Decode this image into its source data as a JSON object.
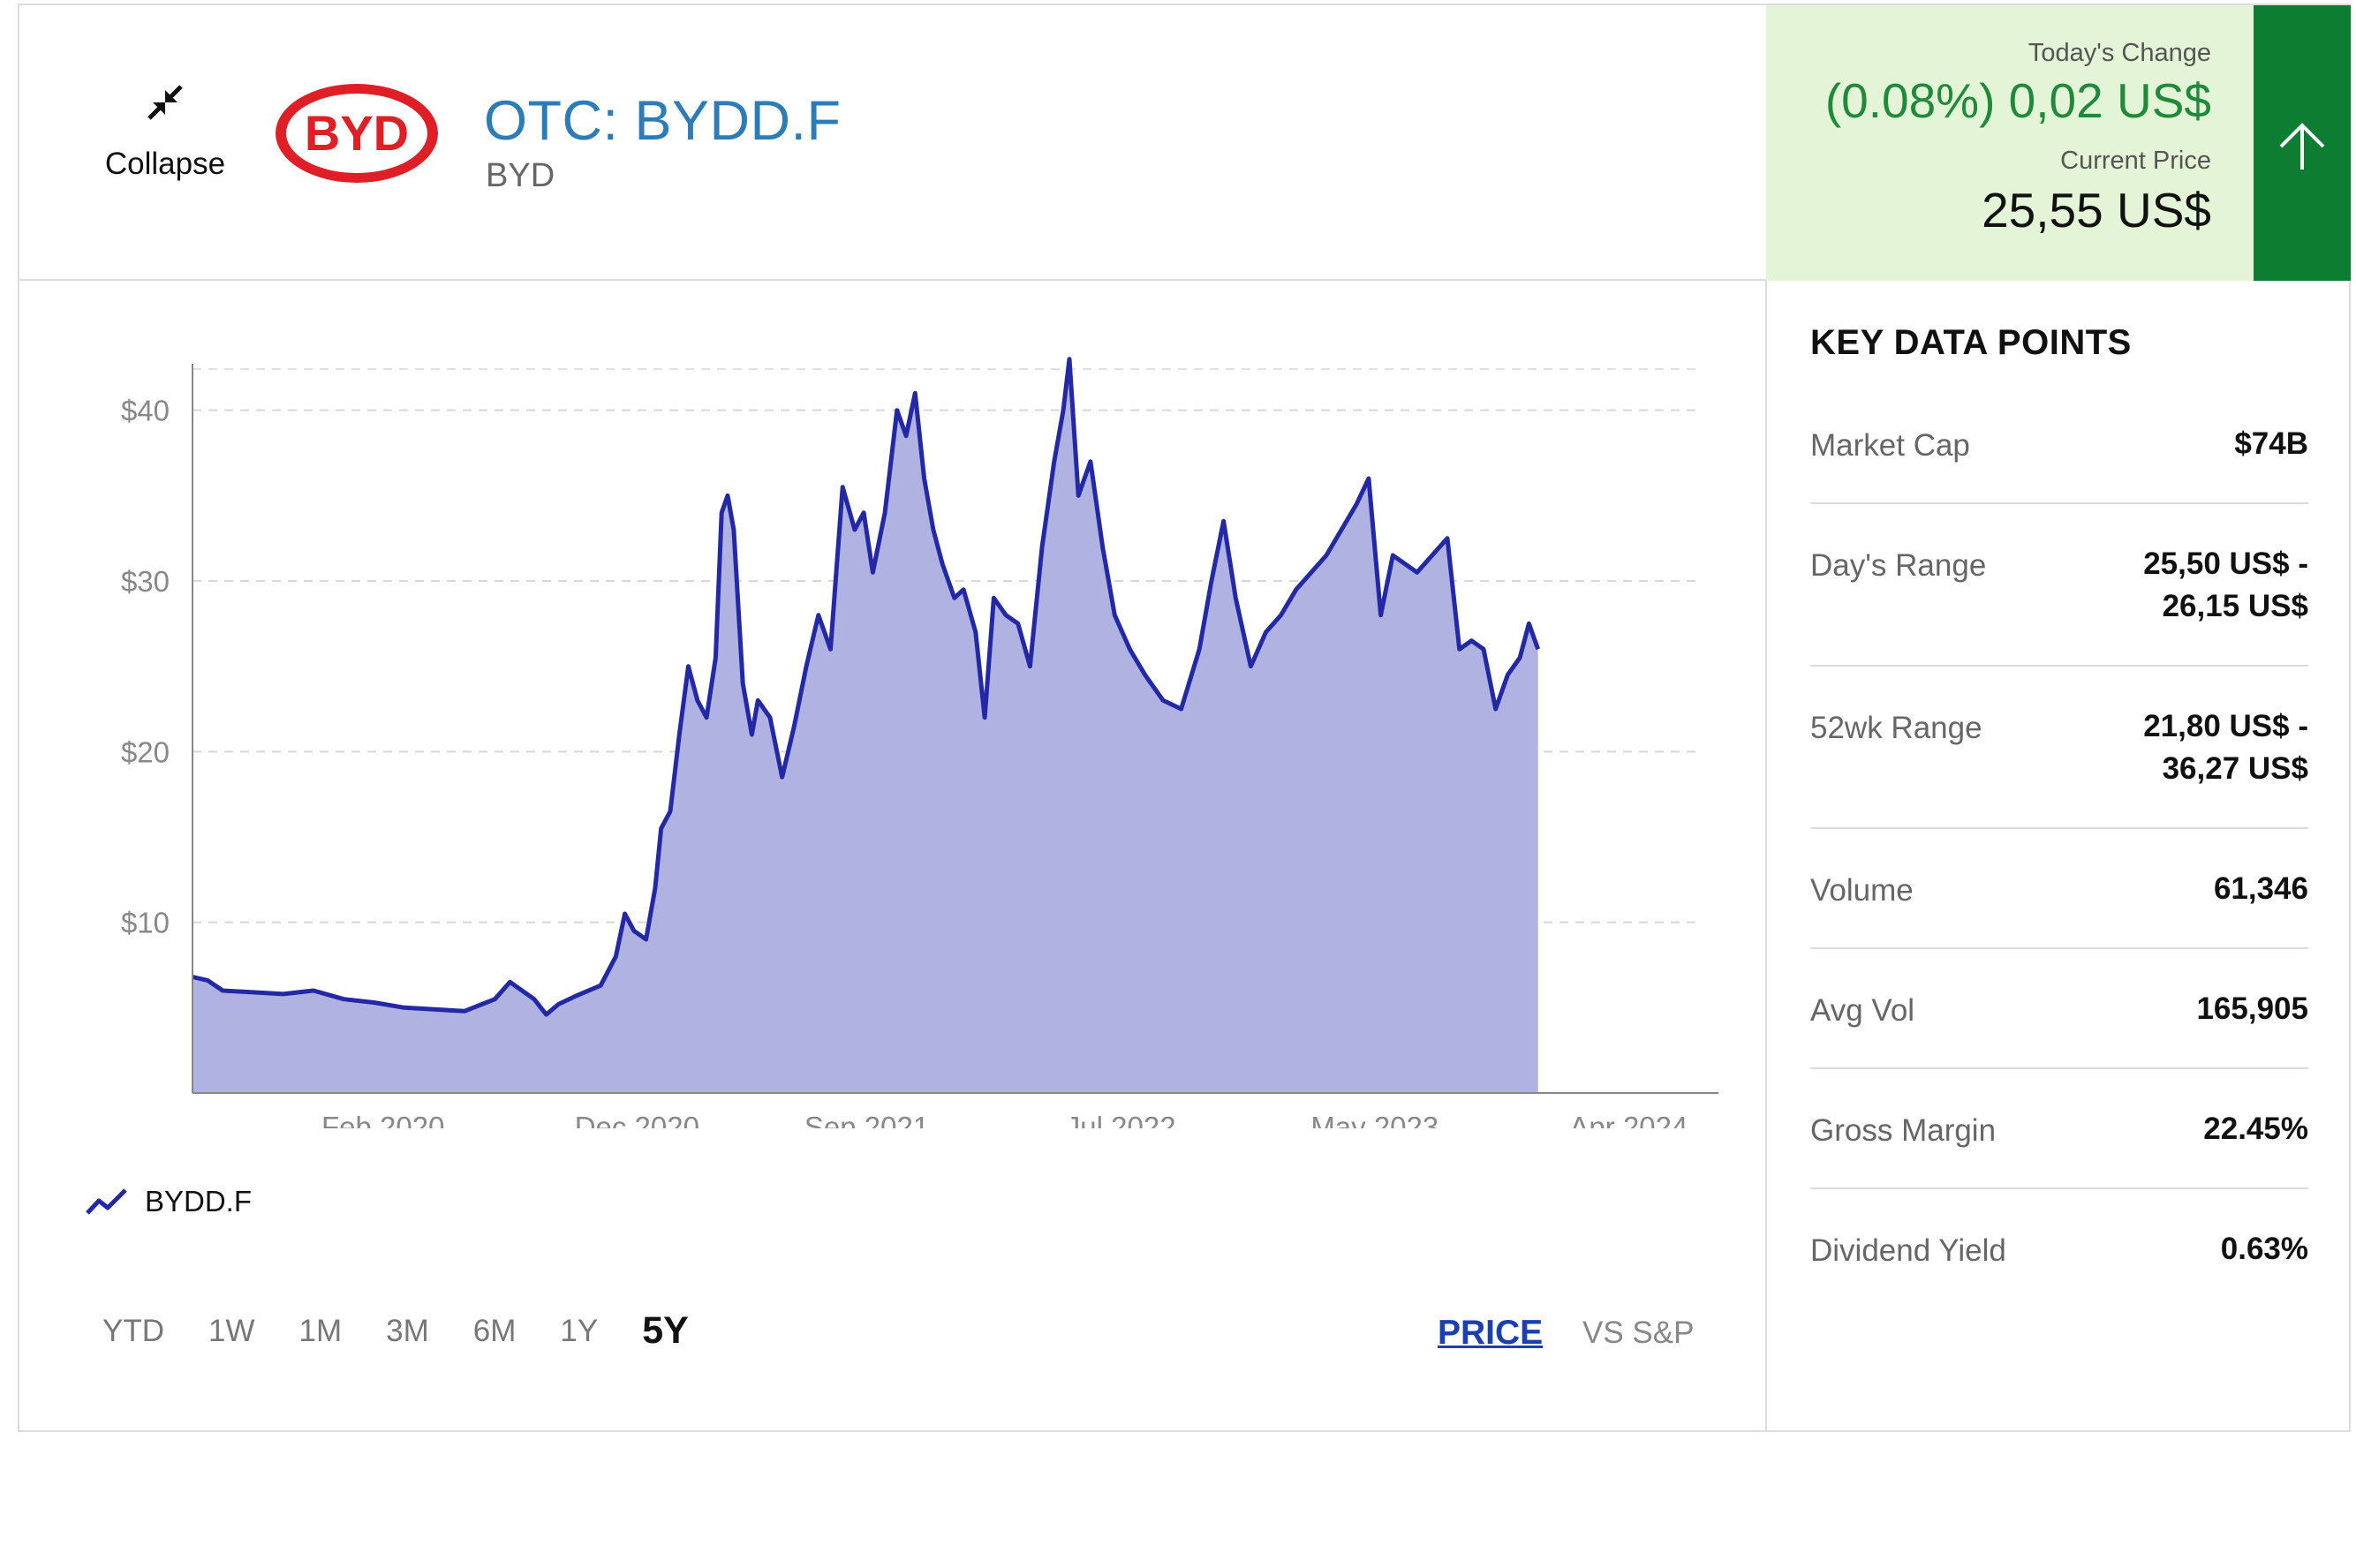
{
  "header": {
    "collapse_label": "Collapse",
    "ticker": "OTC: BYDD.F",
    "company": "BYD",
    "logo_text": "BYD"
  },
  "quote": {
    "change_label": "Today's Change",
    "change_value": "(0.08%) 0,02 US$",
    "price_label": "Current Price",
    "price_value": "25,55 US$",
    "colors": {
      "panel": "#e3f4d7",
      "positive": "#1f8a3a",
      "arrow_panel": "#0d7d32"
    }
  },
  "chart_data": {
    "type": "area",
    "series_name": "BYDD.F",
    "x_ticks": [
      "Feb 2020",
      "Dec 2020",
      "Sep 2021",
      "Jul 2022",
      "May 2023",
      "Apr 2024"
    ],
    "y_ticks": [
      "$10",
      "$20",
      "$30",
      "$40"
    ],
    "ylim": [
      0,
      42
    ],
    "grid": true,
    "points": [
      [
        2019.45,
        6.8
      ],
      [
        2019.5,
        6.6
      ],
      [
        2019.55,
        6.0
      ],
      [
        2019.65,
        5.9
      ],
      [
        2019.75,
        5.8
      ],
      [
        2019.85,
        6.0
      ],
      [
        2019.95,
        5.5
      ],
      [
        2020.05,
        5.3
      ],
      [
        2020.15,
        5.0
      ],
      [
        2020.25,
        4.9
      ],
      [
        2020.35,
        4.8
      ],
      [
        2020.45,
        5.5
      ],
      [
        2020.5,
        6.5
      ],
      [
        2020.58,
        5.5
      ],
      [
        2020.62,
        4.6
      ],
      [
        2020.66,
        5.2
      ],
      [
        2020.72,
        5.7
      ],
      [
        2020.8,
        6.3
      ],
      [
        2020.85,
        8.0
      ],
      [
        2020.88,
        10.5
      ],
      [
        2020.91,
        9.5
      ],
      [
        2020.95,
        9.0
      ],
      [
        2020.98,
        12.0
      ],
      [
        2021.0,
        15.5
      ],
      [
        2021.03,
        16.5
      ],
      [
        2021.06,
        21.0
      ],
      [
        2021.09,
        25.0
      ],
      [
        2021.12,
        23.0
      ],
      [
        2021.15,
        22.0
      ],
      [
        2021.18,
        25.5
      ],
      [
        2021.2,
        34.0
      ],
      [
        2021.22,
        35.0
      ],
      [
        2021.24,
        33.0
      ],
      [
        2021.27,
        24.0
      ],
      [
        2021.3,
        21.0
      ],
      [
        2021.32,
        23.0
      ],
      [
        2021.36,
        22.0
      ],
      [
        2021.4,
        18.5
      ],
      [
        2021.44,
        21.5
      ],
      [
        2021.48,
        25.0
      ],
      [
        2021.52,
        28.0
      ],
      [
        2021.56,
        26.0
      ],
      [
        2021.6,
        35.5
      ],
      [
        2021.64,
        33.0
      ],
      [
        2021.67,
        34.0
      ],
      [
        2021.7,
        30.5
      ],
      [
        2021.74,
        34.0
      ],
      [
        2021.78,
        40.0
      ],
      [
        2021.81,
        38.5
      ],
      [
        2021.84,
        41.0
      ],
      [
        2021.87,
        36.0
      ],
      [
        2021.9,
        33.0
      ],
      [
        2021.93,
        31.0
      ],
      [
        2021.97,
        29.0
      ],
      [
        2022.0,
        29.5
      ],
      [
        2022.04,
        27.0
      ],
      [
        2022.07,
        22.0
      ],
      [
        2022.1,
        29.0
      ],
      [
        2022.14,
        28.0
      ],
      [
        2022.18,
        27.5
      ],
      [
        2022.22,
        25.0
      ],
      [
        2022.26,
        32.0
      ],
      [
        2022.3,
        37.0
      ],
      [
        2022.33,
        40.0
      ],
      [
        2022.35,
        43.0
      ],
      [
        2022.38,
        35.0
      ],
      [
        2022.42,
        37.0
      ],
      [
        2022.46,
        32.0
      ],
      [
        2022.5,
        28.0
      ],
      [
        2022.55,
        26.0
      ],
      [
        2022.6,
        24.5
      ],
      [
        2022.66,
        23.0
      ],
      [
        2022.72,
        22.5
      ],
      [
        2022.78,
        26.0
      ],
      [
        2022.82,
        30.0
      ],
      [
        2022.86,
        33.5
      ],
      [
        2022.9,
        29.0
      ],
      [
        2022.95,
        25.0
      ],
      [
        2023.0,
        27.0
      ],
      [
        2023.05,
        28.0
      ],
      [
        2023.1,
        29.5
      ],
      [
        2023.15,
        30.5
      ],
      [
        2023.2,
        31.5
      ],
      [
        2023.25,
        33.0
      ],
      [
        2023.3,
        34.5
      ],
      [
        2023.34,
        36.0
      ],
      [
        2023.38,
        28.0
      ],
      [
        2023.42,
        31.5
      ],
      [
        2023.46,
        31.0
      ],
      [
        2023.5,
        30.5
      ],
      [
        2023.55,
        31.5
      ],
      [
        2023.6,
        32.5
      ],
      [
        2023.64,
        26.0
      ],
      [
        2023.68,
        26.5
      ],
      [
        2023.72,
        26.0
      ],
      [
        2023.76,
        22.5
      ],
      [
        2023.8,
        24.5
      ],
      [
        2023.84,
        25.5
      ],
      [
        2023.87,
        27.5
      ],
      [
        2023.9,
        26.0
      ]
    ]
  },
  "controls": {
    "ranges": [
      "YTD",
      "1W",
      "1M",
      "3M",
      "6M",
      "1Y",
      "5Y"
    ],
    "active_range": "5Y",
    "mode_price": "PRICE",
    "mode_sp": "VS S&P"
  },
  "key_data": {
    "title": "KEY DATA POINTS",
    "rows": [
      {
        "label": "Market Cap",
        "value": "$74B",
        "value2": ""
      },
      {
        "label": "Day's Range",
        "value": "25,50 US$ -",
        "value2": "26,15 US$"
      },
      {
        "label": "52wk Range",
        "value": "21,80 US$ -",
        "value2": "36,27 US$"
      },
      {
        "label": "Volume",
        "value": "61,346",
        "value2": ""
      },
      {
        "label": "Avg Vol",
        "value": "165,905",
        "value2": ""
      },
      {
        "label": "Gross Margin",
        "value": "22.45%",
        "value2": ""
      },
      {
        "label": "Dividend Yield",
        "value": "0.63%",
        "value2": ""
      }
    ]
  }
}
